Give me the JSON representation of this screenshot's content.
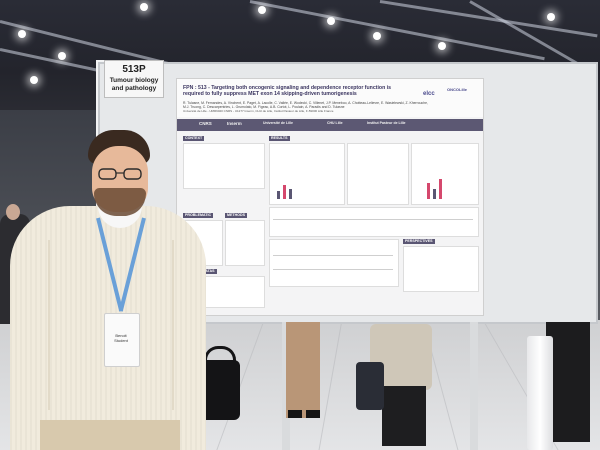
{
  "panel": {
    "number": "513P",
    "category": "Tumour biology and pathology"
  },
  "poster": {
    "title": "FPN : 513 - Targeting both oncogenic signaling and dependence receptor function is required to fully suppress MET exon 14 skipping-driven tumorigenesis",
    "authors": "R. Tulasne, M. Fernandes, A. Vinchent, E. Paget, A. Lacolle, C. Vallée, E. Wodecki, C. Villenet, J.P. Meneboo, A. Chotteau-Lelievre, E. Wasielewski, Z. Kherrouche, M.J. Truong, C. Descarpentries, L. Grumolato, M. Figeac, A.B. Cortot, L. Poulain, A. Paradis and D. Tulasne",
    "affiliation": "Université de Lille - UMR9020 CNRS - U1277 Inserm, CHU de Lille, Institut Pasteur de Lille, F-59000 Lille France",
    "logos": [
      "elcc",
      "ONCOLille",
      "CNRS",
      "Inserm",
      "Université de Lille",
      "CHU Lille",
      "Institut Pasteur de Lille"
    ],
    "sections": [
      "CONTEXT",
      "RESULTS",
      "PROBLEMATIC",
      "METHODS",
      "CLINICAL DATAS",
      "PERSPECTIVES"
    ],
    "colors": {
      "band": "#5c5873",
      "accent": "#d5486d"
    }
  },
  "badge": {
    "name": "Benoit",
    "role": "Student"
  }
}
